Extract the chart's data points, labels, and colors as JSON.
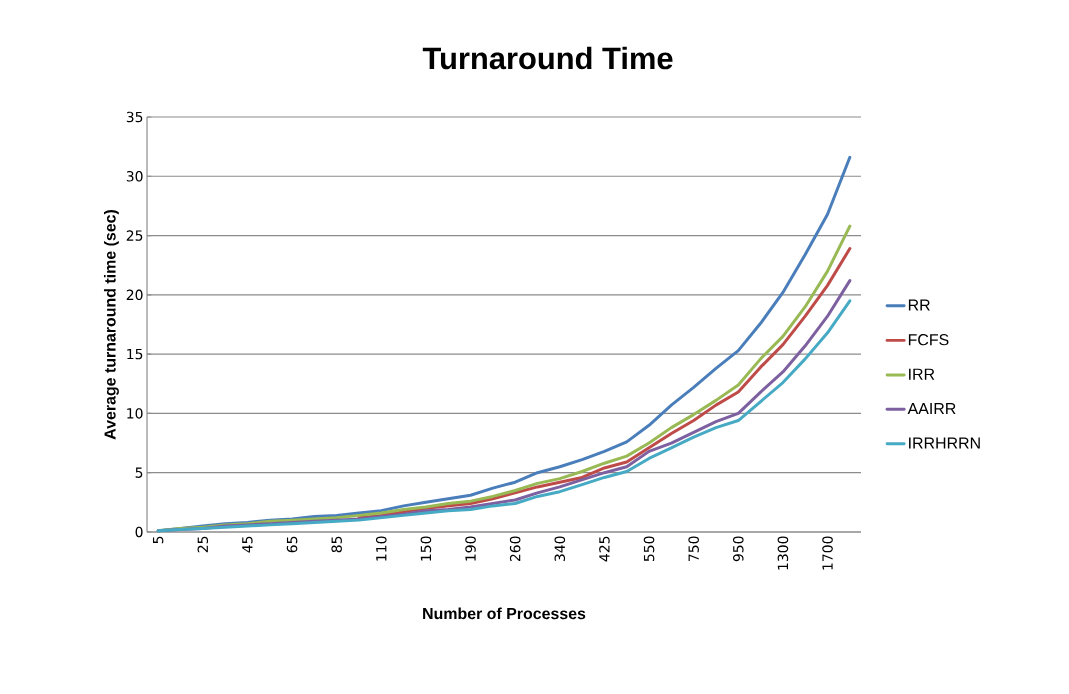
{
  "chart_data": {
    "type": "line",
    "title": "Turnaround Time",
    "xlabel": "Number of Processes",
    "ylabel": "Average turnaround time (sec)",
    "categories": [
      "5",
      null,
      "25",
      null,
      "45",
      null,
      "65",
      null,
      "85",
      null,
      "110",
      null,
      "150",
      null,
      "190",
      null,
      "260",
      null,
      "340",
      null,
      "425",
      null,
      "550",
      null,
      "750",
      null,
      "950",
      null,
      "1300",
      null,
      "1700",
      null
    ],
    "series": [
      {
        "name": "RR",
        "color": "#4a7ebb",
        "values": [
          0.1,
          0.3,
          0.5,
          0.7,
          0.8,
          1.0,
          1.1,
          1.3,
          1.4,
          1.6,
          1.8,
          2.2,
          2.5,
          2.8,
          3.1,
          3.7,
          4.2,
          5.0,
          5.5,
          6.1,
          6.8,
          7.6,
          9.0,
          10.7,
          12.2,
          13.8,
          15.3,
          17.6,
          20.2,
          23.4,
          26.8,
          31.6
        ]
      },
      {
        "name": "FCFS",
        "color": "#be4b48",
        "values": [
          null,
          null,
          null,
          null,
          null,
          null,
          null,
          null,
          null,
          1.2,
          1.4,
          1.7,
          2.0,
          2.2,
          2.4,
          2.8,
          3.3,
          3.8,
          4.2,
          4.6,
          5.4,
          5.9,
          7.1,
          8.3,
          9.4,
          10.7,
          11.8,
          13.9,
          15.8,
          18.2,
          20.8,
          23.9
        ]
      },
      {
        "name": "IRR",
        "color": "#98b954",
        "values": [
          0.1,
          0.3,
          0.4,
          0.6,
          0.7,
          0.9,
          1.0,
          1.1,
          1.2,
          1.4,
          1.6,
          1.9,
          2.1,
          2.4,
          2.6,
          3.0,
          3.5,
          4.1,
          4.5,
          5.1,
          5.8,
          6.4,
          7.5,
          8.8,
          9.9,
          11.1,
          12.4,
          14.6,
          16.5,
          19.0,
          22.0,
          25.8
        ]
      },
      {
        "name": "AAIRR",
        "color": "#7d60a0",
        "values": [
          0.1,
          0.2,
          0.3,
          0.5,
          0.6,
          0.7,
          0.8,
          0.9,
          1.0,
          1.1,
          1.3,
          1.5,
          1.8,
          1.9,
          2.1,
          2.4,
          2.7,
          3.3,
          3.8,
          4.4,
          5.0,
          5.5,
          6.8,
          7.5,
          8.4,
          9.3,
          10.0,
          11.8,
          13.5,
          15.7,
          18.2,
          21.2
        ]
      },
      {
        "name": "IRRHRRN",
        "color": "#46aac5",
        "values": [
          0.1,
          0.2,
          0.3,
          0.4,
          0.5,
          0.6,
          0.7,
          0.8,
          0.9,
          1.0,
          1.2,
          1.4,
          1.6,
          1.8,
          1.9,
          2.2,
          2.4,
          3.0,
          3.4,
          4.0,
          4.6,
          5.1,
          6.2,
          7.1,
          8.0,
          8.8,
          9.4,
          11.0,
          12.6,
          14.6,
          16.8,
          19.5
        ]
      }
    ],
    "ylim": [
      0,
      35
    ],
    "yticks": [
      0,
      5,
      10,
      15,
      20,
      25,
      30,
      35
    ],
    "grid": "y",
    "legend": "right",
    "marker": "none",
    "line_style": "solid"
  }
}
